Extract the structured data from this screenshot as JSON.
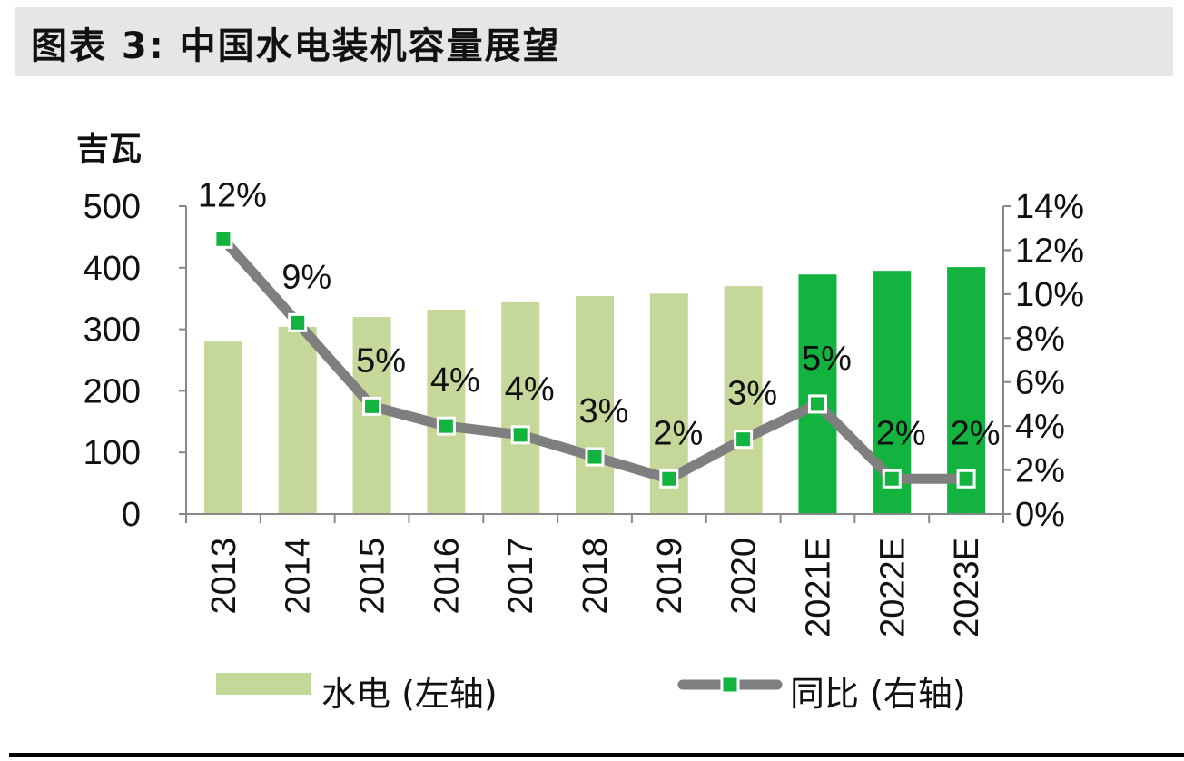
{
  "title": "图表 3: 中国水电装机容量展望",
  "chart_data": {
    "type": "bar+line",
    "categories": [
      "2013",
      "2014",
      "2015",
      "2016",
      "2017",
      "2018",
      "2019",
      "2020",
      "2021E",
      "2022E",
      "2023E"
    ],
    "left_axis": {
      "label": "吉瓦",
      "range": [
        0,
        500
      ],
      "ticks": [
        "0",
        "100",
        "200",
        "300",
        "400",
        "500"
      ]
    },
    "right_axis": {
      "range": [
        0,
        14
      ],
      "ticks": [
        "0%",
        "2%",
        "4%",
        "6%",
        "8%",
        "10%",
        "12%",
        "14%"
      ]
    },
    "series": [
      {
        "name": "水电 (左轴)",
        "type": "bar",
        "axis": "left",
        "values": [
          280,
          304,
          320,
          332,
          344,
          354,
          358,
          370,
          389,
          395,
          401
        ],
        "colors": {
          "actual": "#c5d89a",
          "forecast": "#12b33f"
        }
      },
      {
        "name": "同比 (右轴)",
        "type": "line",
        "axis": "right",
        "values": [
          12.5,
          8.7,
          4.9,
          4.0,
          3.6,
          2.6,
          1.6,
          3.4,
          5.0,
          1.6,
          1.6
        ],
        "data_labels": [
          "12%",
          "9%",
          "5%",
          "4%",
          "4%",
          "3%",
          "2%",
          "3%",
          "5%",
          "2%",
          "2%"
        ],
        "line_color": "#7f7f7f",
        "marker_color": "#12b33f"
      }
    ],
    "legend": {
      "placement": "bottom",
      "items": [
        "水电 (左轴)",
        "同比 (右轴)"
      ]
    },
    "grid": false
  }
}
